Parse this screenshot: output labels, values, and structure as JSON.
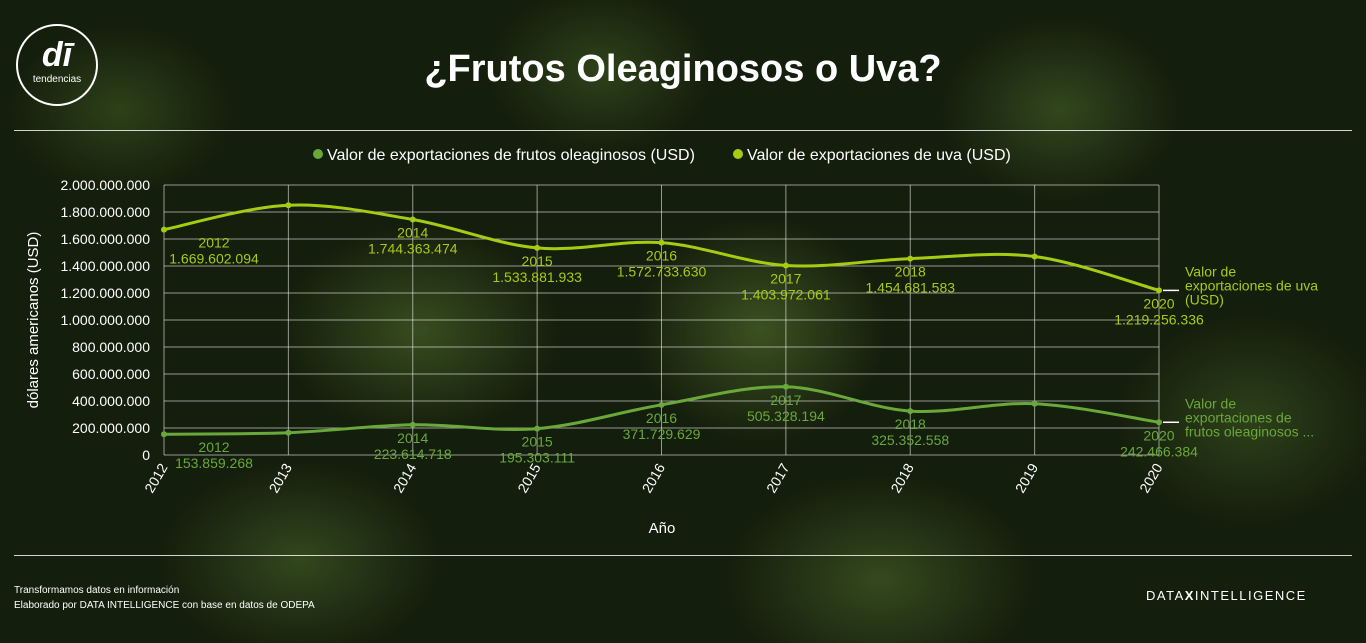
{
  "header": {
    "logo_mark": "dī",
    "logo_text": "tendencias",
    "title": "¿Frutos Oleaginosos o Uva?"
  },
  "footer": {
    "line1": "Transformamos datos en información",
    "line2": "Elaborado por DATA INTELLIGENCE con base en datos de ODEPA",
    "brand_left": "DATA",
    "brand_x": "X",
    "brand_right": "INTELLIGENCE"
  },
  "colors": {
    "grape": "#a5cc12",
    "nuts": "#6aa83a",
    "grid": "#ffffff",
    "text": "#ffffff"
  },
  "chart_data": {
    "type": "line",
    "xlabel": "Año",
    "ylabel": "dólares americanos (USD)",
    "ylim": [
      0,
      2000000000
    ],
    "yticks": [
      "0",
      "200.000.000",
      "400.000.000",
      "600.000.000",
      "800.000.000",
      "1.000.000.000",
      "1.200.000.000",
      "1.400.000.000",
      "1.600.000.000",
      "1.800.000.000",
      "2.000.000.000"
    ],
    "categories": [
      "2012",
      "2013",
      "2014",
      "2015",
      "2016",
      "2017",
      "2018",
      "2019",
      "2020"
    ],
    "legend_position": "top-center",
    "grid": true,
    "series": [
      {
        "name": "Valor de exportaciones de frutos oleaginosos (USD)",
        "end_label": [
          "Valor de",
          "exportaciones de",
          "frutos oleaginosos ..."
        ],
        "color": "#6aa83a",
        "values": [
          153859268,
          165000000,
          223614718,
          195303111,
          371729629,
          505328194,
          325352558,
          380000000,
          242466384
        ],
        "labels": [
          {
            "year": "2012",
            "value": "153.859.268"
          },
          null,
          {
            "year": "2014",
            "value": "223.614.718"
          },
          {
            "year": "2015",
            "value": "195.303.111"
          },
          {
            "year": "2016",
            "value": "371.729.629"
          },
          {
            "year": "2017",
            "value": "505.328.194"
          },
          {
            "year": "2018",
            "value": "325.352.558"
          },
          null,
          {
            "year": "2020",
            "value": "242.466.384"
          }
        ]
      },
      {
        "name": "Valor de exportaciones de uva (USD)",
        "end_label": [
          "Valor de",
          "exportaciones de uva",
          "(USD)"
        ],
        "color": "#a5cc12",
        "values": [
          1669602094,
          1850000000,
          1744363474,
          1533881933,
          1572733630,
          1403972061,
          1454681583,
          1470000000,
          1219256336
        ],
        "labels": [
          {
            "year": "2012",
            "value": "1.669.602.094"
          },
          null,
          {
            "year": "2014",
            "value": "1.744.363.474"
          },
          {
            "year": "2015",
            "value": "1.533.881.933"
          },
          {
            "year": "2016",
            "value": "1.572.733.630"
          },
          {
            "year": "2017",
            "value": "1.403.972.061"
          },
          {
            "year": "2018",
            "value": "1.454.681.583"
          },
          null,
          {
            "year": "2020",
            "value": "1.219.256.336"
          }
        ]
      }
    ]
  }
}
